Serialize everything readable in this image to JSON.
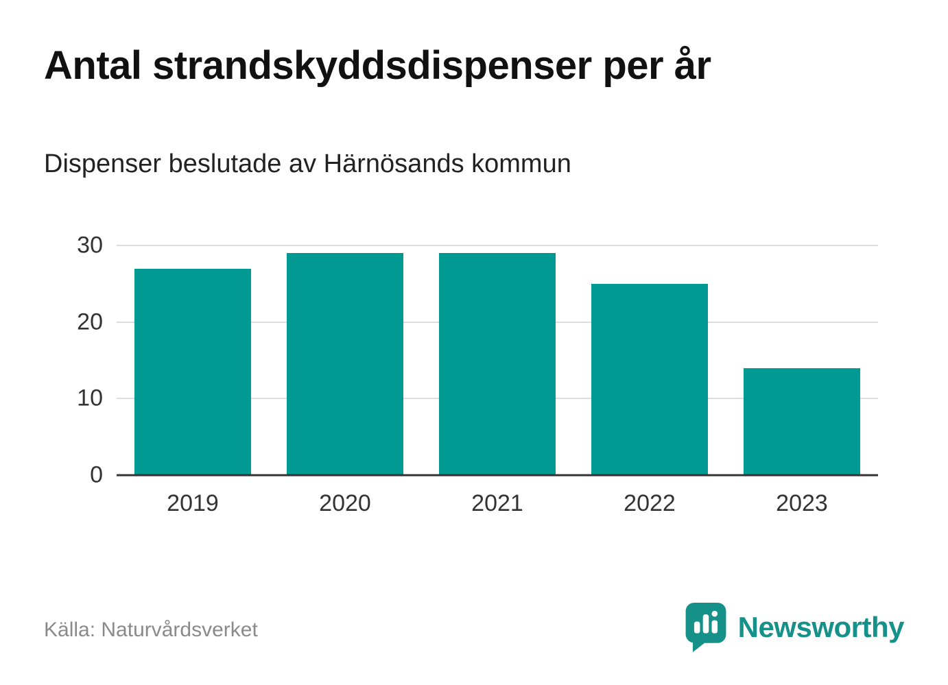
{
  "header": {
    "title": "Antal strandskyddsdispenser per år",
    "subtitle": "Dispenser beslutade av Härnösands kommun"
  },
  "chart_data": {
    "type": "bar",
    "categories": [
      "2019",
      "2020",
      "2021",
      "2022",
      "2023"
    ],
    "values": [
      27,
      29,
      29,
      25,
      14
    ],
    "title": "Antal strandskyddsdispenser per år",
    "subtitle": "Dispenser beslutade av Härnösands kommun",
    "xlabel": "",
    "ylabel": "",
    "ylim": [
      0,
      30
    ],
    "yticks": [
      0,
      10,
      20,
      30
    ],
    "grid": true,
    "legend": false,
    "bar_color": "#009a93"
  },
  "footer": {
    "source": "Källa: Naturvårdsverket",
    "brand": "Newsworthy",
    "brand_color": "#15918a"
  }
}
